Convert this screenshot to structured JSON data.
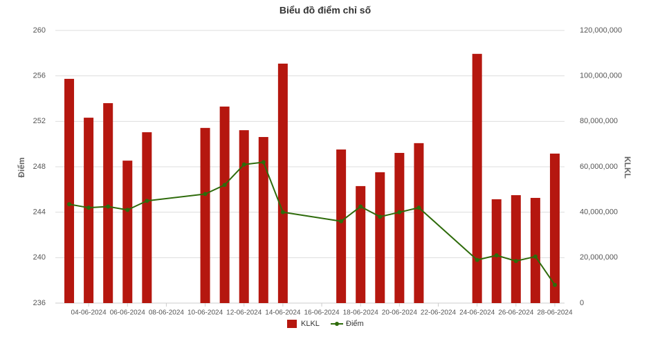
{
  "chart_data": {
    "type": "bar-line",
    "title": "Biểu đồ điểm chỉ số",
    "y_label": "Điểm",
    "y2_label": "KLKL",
    "categories": [
      null,
      "04-06-2024",
      null,
      "06-06-2024",
      null,
      "08-06-2024",
      null,
      "10-06-2024",
      null,
      "12-06-2024",
      null,
      "14-06-2024",
      null,
      "16-06-2024",
      null,
      "18-06-2024",
      null,
      "20-06-2024",
      null,
      "22-06-2024",
      null,
      "24-06-2024",
      null,
      "26-06-2024",
      null,
      "28-06-2024"
    ],
    "series": [
      {
        "name": "KLKL",
        "type": "bar",
        "axis": "y2",
        "color": "#b5170f",
        "values": [
          98700000,
          81600000,
          88000000,
          62700000,
          75200000,
          null,
          null,
          77100000,
          86500000,
          76100000,
          73100000,
          105400000,
          null,
          null,
          67600000,
          51500000,
          57600000,
          66100000,
          70400000,
          null,
          null,
          109700000,
          45700000,
          47500000,
          46300000,
          65800000
        ]
      },
      {
        "name": "Điểm",
        "type": "line",
        "color": "#2e6b0b",
        "values": [
          244.7,
          244.4,
          244.5,
          244.2,
          245.0,
          null,
          null,
          245.6,
          246.4,
          248.2,
          248.4,
          244.0,
          null,
          null,
          243.2,
          244.5,
          243.6,
          244.0,
          244.4,
          null,
          null,
          239.8,
          240.2,
          239.7,
          240.1,
          237.6
        ]
      }
    ],
    "ylim": [
      236,
      260
    ],
    "yticks": [
      236,
      240,
      244,
      248,
      252,
      256,
      260
    ],
    "y2lim": [
      0,
      120000000
    ],
    "y2ticks": [
      0,
      {
        "value": 20000000,
        "label": "20,000,000"
      },
      {
        "value": 40000000,
        "label": "40,000,000"
      },
      {
        "value": 60000000,
        "label": "60,000,000"
      },
      {
        "value": 80000000,
        "label": "80,000,000"
      },
      {
        "value": 100000000,
        "label": "100,000,000"
      },
      {
        "value": 120000000,
        "label": "120,000,000"
      }
    ],
    "grid": true,
    "legend": "bottom"
  }
}
